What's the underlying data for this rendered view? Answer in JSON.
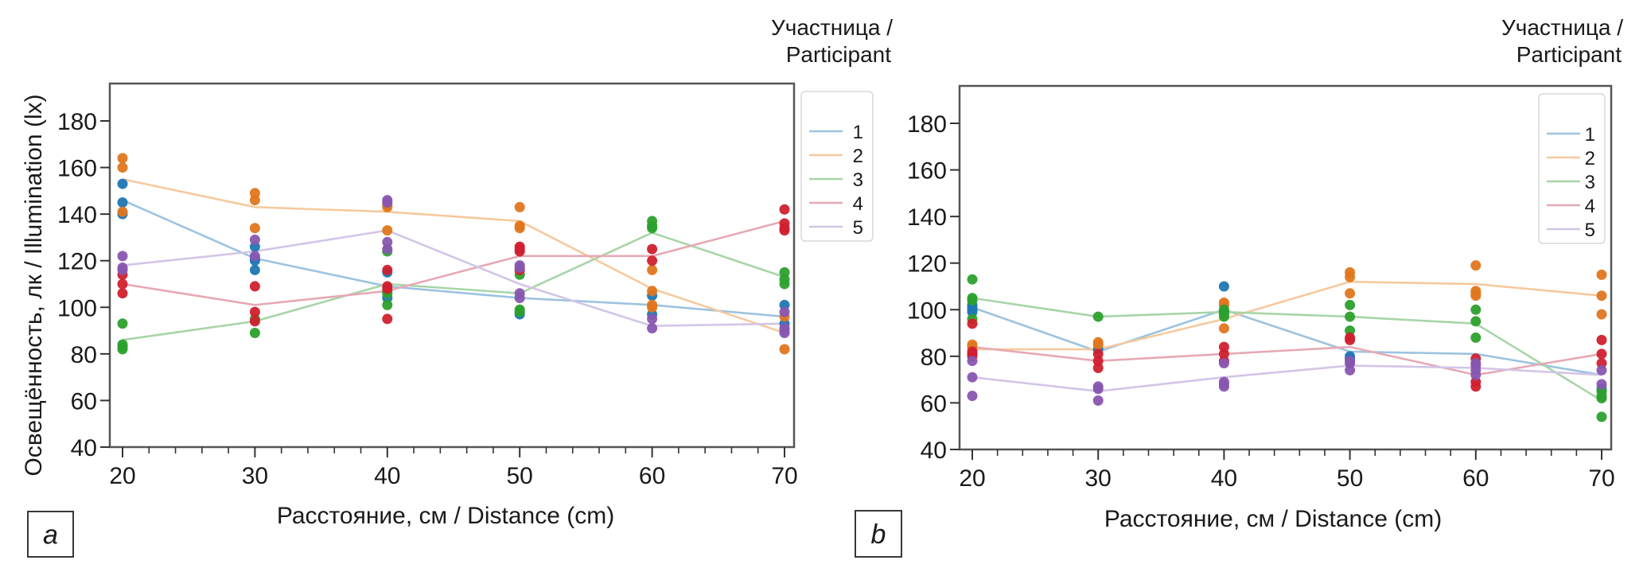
{
  "chart_data": [
    {
      "id": "a",
      "type": "scatter",
      "panel_label": "a",
      "xlabel": "Расстояние, см / Distance (cm)",
      "ylabel": "Освещённость, лк / Illumination (lx)",
      "xlim": [
        19,
        71
      ],
      "ylim": [
        40,
        195
      ],
      "xticks": [
        20,
        30,
        40,
        50,
        60,
        70
      ],
      "xticks_minor_step": 2,
      "yticks": [
        40,
        60,
        80,
        100,
        120,
        140,
        160,
        180
      ],
      "grid": false,
      "legend": {
        "title_line1": "Участница /",
        "title_line2": "Participant",
        "placement": "outside-top-right",
        "entries": [
          "1",
          "2",
          "3",
          "4",
          "5"
        ]
      },
      "series": [
        {
          "name": "1",
          "point_color": "#1f77b4",
          "line_color": "#9cc3e0",
          "mean_line": [
            146,
            121,
            109,
            104,
            101,
            96
          ],
          "points": {
            "20": [
              153,
              145,
              140
            ],
            "30": [
              126,
              121,
              120,
              116
            ],
            "40": [
              115,
              104
            ],
            "50": [
              97
            ],
            "60": [
              105,
              97
            ],
            "70": [
              101,
              93
            ]
          }
        },
        {
          "name": "2",
          "point_color": "#e0761e",
          "line_color": "#f6c99e",
          "mean_line": [
            155,
            143,
            141,
            137,
            108,
            89
          ],
          "points": {
            "20": [
              164,
              160,
              141
            ],
            "30": [
              149,
              146,
              134
            ],
            "40": [
              144,
              143,
              133
            ],
            "50": [
              143,
              135,
              134
            ],
            "60": [
              116,
              107,
              101,
              100
            ],
            "70": [
              96,
              82
            ]
          }
        },
        {
          "name": "3",
          "point_color": "#2ca02c",
          "line_color": "#a8d5a8",
          "mean_line": [
            86,
            94,
            110,
            106,
            132,
            113
          ],
          "points": {
            "20": [
              93,
              84,
              83,
              82
            ],
            "30": [
              95,
              89
            ],
            "40": [
              124,
              107,
              106,
              101
            ],
            "50": [
              114,
              99,
              98
            ],
            "60": [
              137,
              135,
              134
            ],
            "70": [
              115,
              112,
              110
            ]
          }
        },
        {
          "name": "4",
          "point_color": "#d0202e",
          "line_color": "#e6a9b4",
          "mean_line": [
            110,
            101,
            107,
            122,
            122,
            137
          ],
          "points": {
            "20": [
              114,
              110,
              106
            ],
            "30": [
              109,
              98,
              94
            ],
            "40": [
              116,
              109,
              108,
              95
            ],
            "50": [
              126,
              125,
              124,
              116
            ],
            "60": [
              125,
              120
            ],
            "70": [
              142,
              136,
              134,
              133
            ]
          }
        },
        {
          "name": "5",
          "point_color": "#8856b0",
          "line_color": "#d3c5e6",
          "mean_line": [
            118,
            124,
            133,
            110,
            92,
            93
          ],
          "points": {
            "20": [
              122,
              117,
              116
            ],
            "30": [
              129,
              122
            ],
            "40": [
              146,
              145,
              128,
              125
            ],
            "50": [
              118,
              117,
              106,
              104
            ],
            "60": [
              95,
              91
            ],
            "70": [
              98,
              91,
              90,
              89
            ]
          }
        }
      ]
    },
    {
      "id": "b",
      "type": "scatter",
      "panel_label": "b",
      "xlabel": "Расстояние, см / Distance (cm)",
      "ylabel": "",
      "xlim": [
        19,
        71
      ],
      "ylim": [
        40,
        195
      ],
      "xticks": [
        20,
        30,
        40,
        50,
        60,
        70
      ],
      "xticks_minor_step": 2,
      "yticks": [
        40,
        60,
        80,
        100,
        120,
        140,
        160,
        180
      ],
      "grid": false,
      "legend": {
        "title_line1": "Участница /",
        "title_line2": "Participant",
        "placement": "inside-top-right",
        "entries": [
          "1",
          "2",
          "3",
          "4",
          "5"
        ]
      },
      "series": [
        {
          "name": "1",
          "point_color": "#1f77b4",
          "line_color": "#9cc3e0",
          "mean_line": [
            101,
            82,
            100,
            82,
            81,
            72
          ],
          "points": {
            "20": [
              102,
              101,
              100,
              99
            ],
            "30": [
              83
            ],
            "40": [
              110
            ],
            "50": [
              80,
              79
            ],
            "60": [],
            "70": [
              66
            ]
          }
        },
        {
          "name": "2",
          "point_color": "#e0761e",
          "line_color": "#f6c99e",
          "mean_line": [
            83,
            83,
            96,
            112,
            111,
            106
          ],
          "points": {
            "20": [
              85,
              84
            ],
            "30": [
              86,
              85
            ],
            "40": [
              103,
              102,
              92
            ],
            "50": [
              116,
              114,
              107
            ],
            "60": [
              119,
              108,
              107,
              106
            ],
            "70": [
              115,
              106,
              98
            ]
          }
        },
        {
          "name": "3",
          "point_color": "#2ca02c",
          "line_color": "#a8d5a8",
          "mean_line": [
            105,
            97,
            99,
            97,
            94,
            61
          ],
          "points": {
            "20": [
              113,
              105,
              104,
              96
            ],
            "30": [
              97
            ],
            "40": [
              100,
              99,
              98,
              97
            ],
            "50": [
              102,
              97,
              91
            ],
            "60": [
              100,
              95,
              88
            ],
            "70": [
              65,
              63,
              62,
              54
            ]
          }
        },
        {
          "name": "4",
          "point_color": "#d0202e",
          "line_color": "#e6a9b4",
          "mean_line": [
            84,
            78,
            81,
            84,
            72,
            81
          ],
          "points": {
            "20": [
              94,
              82,
              81,
              80
            ],
            "30": [
              81,
              78,
              75
            ],
            "40": [
              84,
              81,
              78
            ],
            "50": [
              88,
              87
            ],
            "60": [
              79,
              69,
              67
            ],
            "70": [
              87,
              81,
              77
            ]
          }
        },
        {
          "name": "5",
          "point_color": "#8856b0",
          "line_color": "#d3c5e6",
          "mean_line": [
            71,
            65,
            71,
            76,
            75,
            72
          ],
          "points": {
            "20": [
              78,
              71,
              63
            ],
            "30": [
              67,
              66,
              61
            ],
            "40": [
              77,
              69,
              68,
              67
            ],
            "50": [
              78,
              77,
              74
            ],
            "60": [
              77,
              76,
              74,
              72
            ],
            "70": [
              74,
              68
            ]
          }
        }
      ]
    }
  ]
}
